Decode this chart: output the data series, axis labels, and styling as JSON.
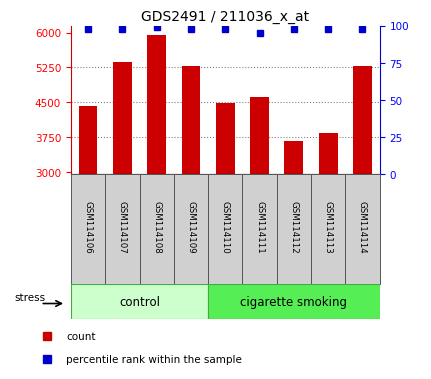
{
  "title": "GDS2491 / 211036_x_at",
  "samples": [
    "GSM114106",
    "GSM114107",
    "GSM114108",
    "GSM114109",
    "GSM114110",
    "GSM114111",
    "GSM114112",
    "GSM114113",
    "GSM114114"
  ],
  "counts": [
    4430,
    5370,
    5940,
    5280,
    4490,
    4620,
    3660,
    3830,
    5280
  ],
  "percentile_ranks": [
    98,
    98,
    99,
    98,
    98,
    95,
    98,
    98,
    98
  ],
  "bar_color": "#cc0000",
  "dot_color": "#0000cc",
  "ylim_left": [
    2950,
    6150
  ],
  "ylim_right": [
    0,
    100
  ],
  "yticks_left": [
    3000,
    3750,
    4500,
    5250,
    6000
  ],
  "yticks_right": [
    0,
    25,
    50,
    75,
    100
  ],
  "grid_lines": [
    3750,
    4500,
    5250
  ],
  "control_color": "#ccffcc",
  "smoking_color": "#55ee55",
  "label_bg_color": "#d0d0d0",
  "bar_width": 0.55,
  "dot_size": 5,
  "n_control": 4,
  "n_smoking": 5
}
